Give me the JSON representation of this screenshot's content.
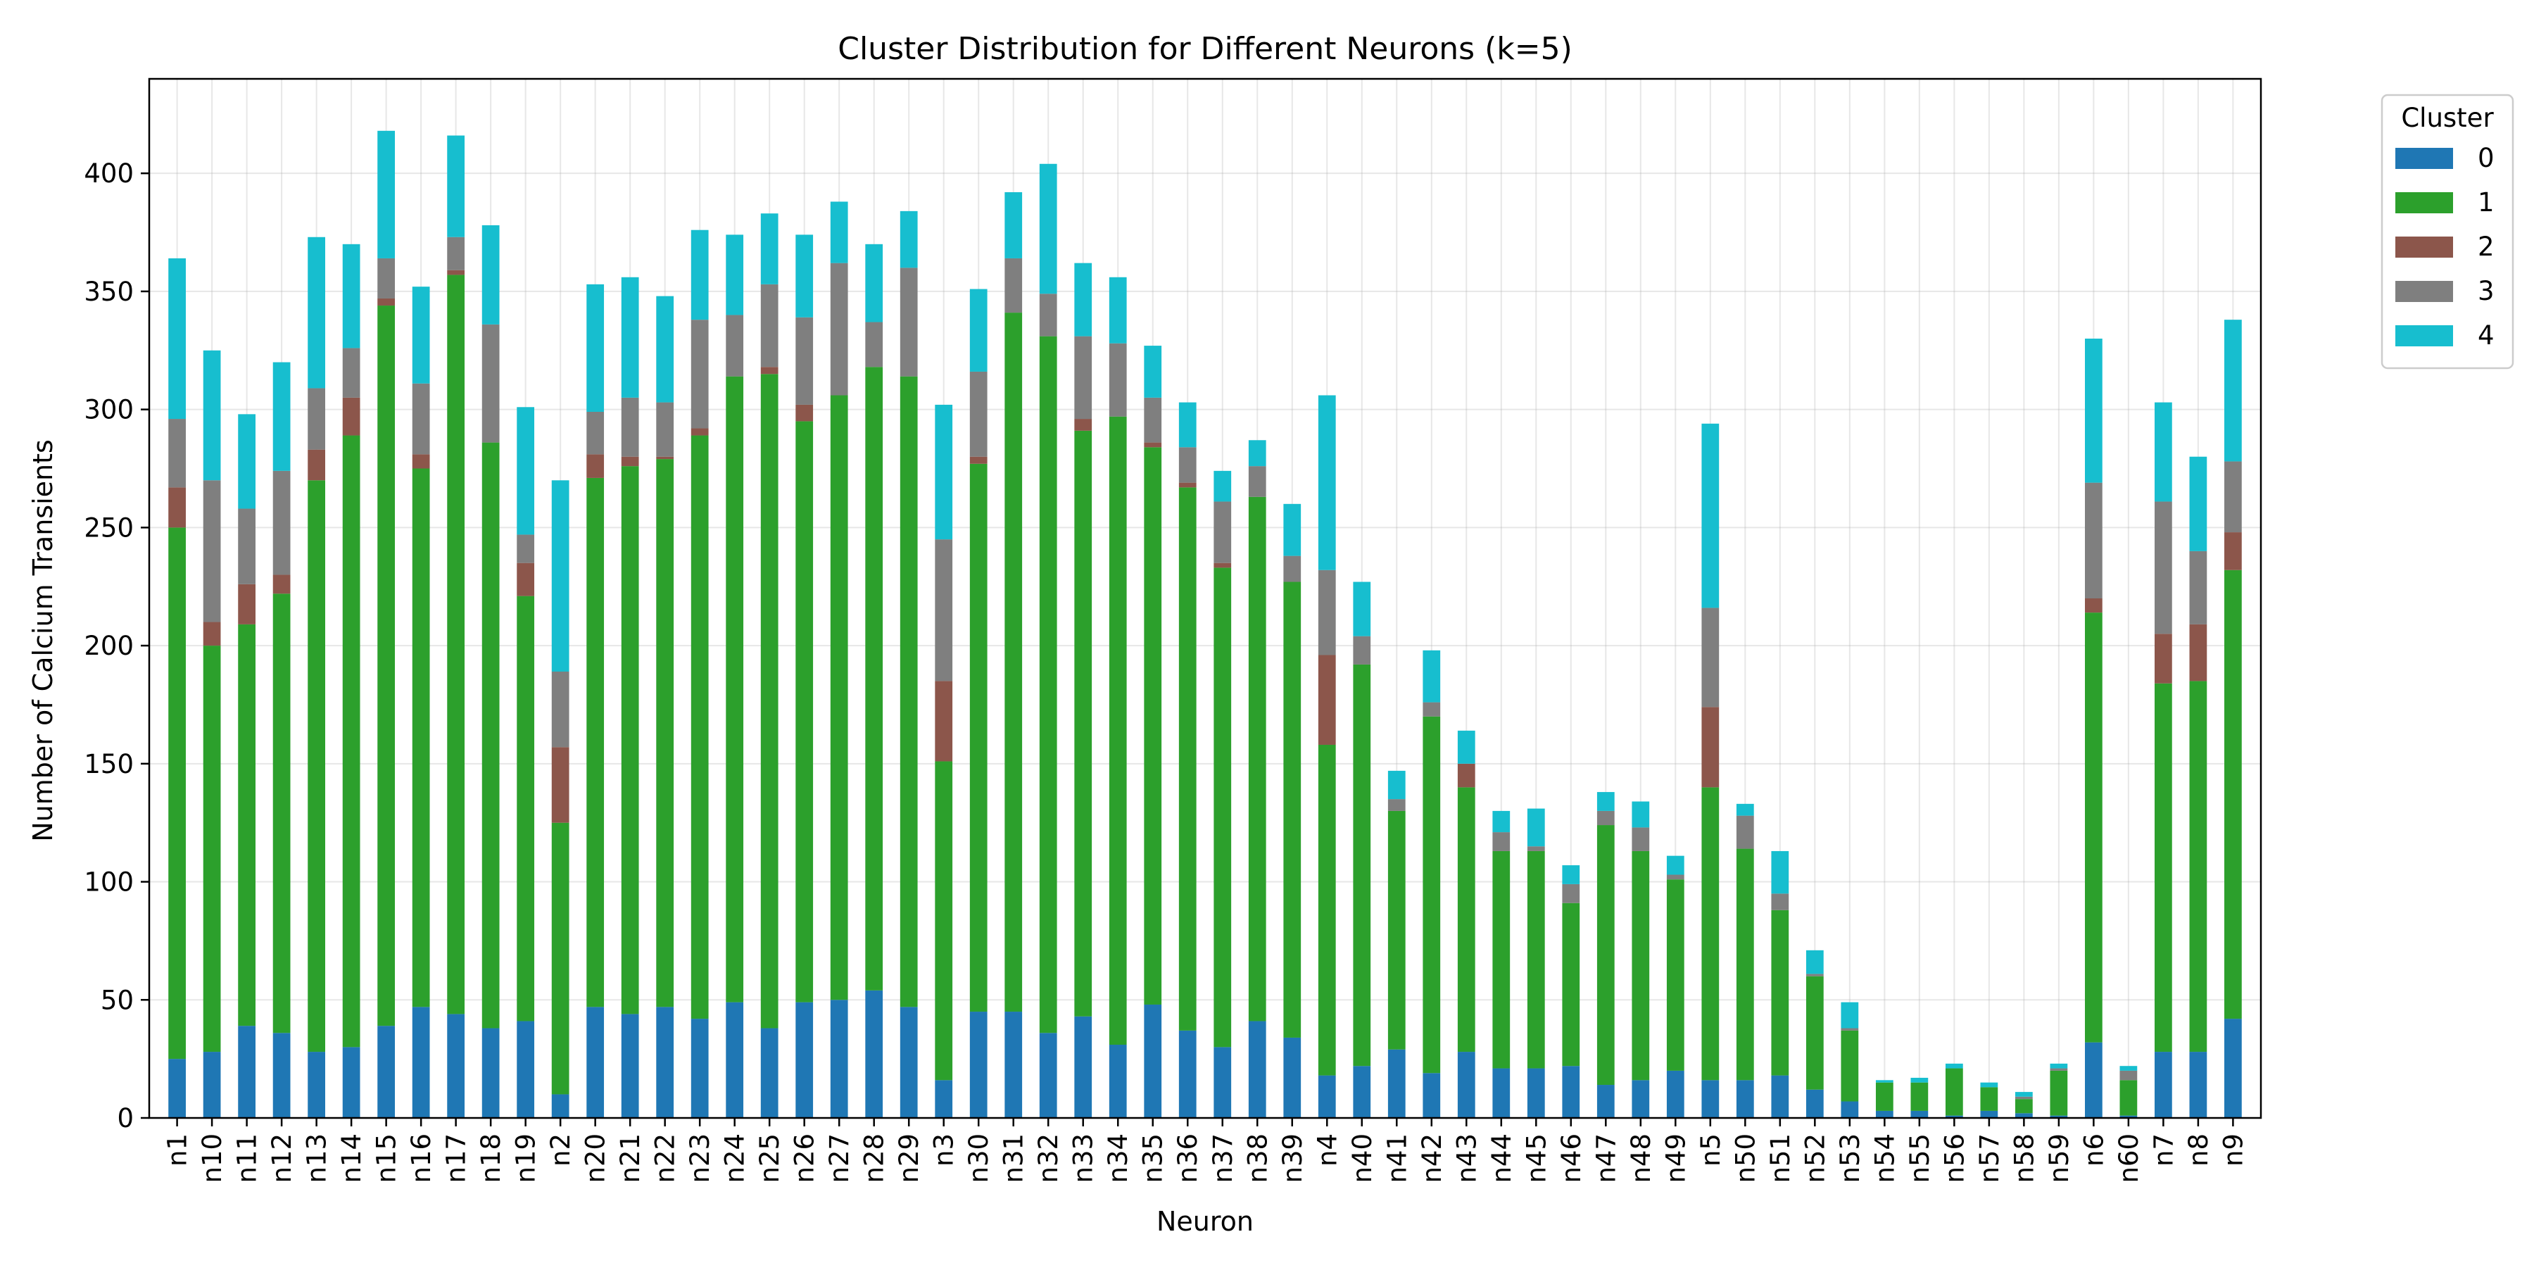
{
  "chart_data": {
    "type": "bar",
    "stacked": true,
    "title": "Cluster Distribution for Different Neurons (k=5)",
    "xlabel": "Neuron",
    "ylabel": "Number of Calcium Transients",
    "ylim": [
      0,
      440
    ],
    "yticks": [
      0,
      50,
      100,
      150,
      200,
      250,
      300,
      350,
      400
    ],
    "grid": true,
    "legend": {
      "title": "Cluster",
      "placement": "outside-top-right"
    },
    "categories": [
      "n1",
      "n10",
      "n11",
      "n12",
      "n13",
      "n14",
      "n15",
      "n16",
      "n17",
      "n18",
      "n19",
      "n2",
      "n20",
      "n21",
      "n22",
      "n23",
      "n24",
      "n25",
      "n26",
      "n27",
      "n28",
      "n29",
      "n3",
      "n30",
      "n31",
      "n32",
      "n33",
      "n34",
      "n35",
      "n36",
      "n37",
      "n38",
      "n39",
      "n4",
      "n40",
      "n41",
      "n42",
      "n43",
      "n44",
      "n45",
      "n46",
      "n47",
      "n48",
      "n49",
      "n5",
      "n50",
      "n51",
      "n52",
      "n53",
      "n54",
      "n55",
      "n56",
      "n57",
      "n58",
      "n59",
      "n6",
      "n60",
      "n7",
      "n8",
      "n9"
    ],
    "series": [
      {
        "name": "0",
        "color": "#1f77b4",
        "values": [
          25,
          28,
          39,
          36,
          28,
          30,
          39,
          47,
          44,
          38,
          41,
          10,
          47,
          44,
          47,
          42,
          49,
          38,
          49,
          50,
          54,
          47,
          16,
          45,
          45,
          36,
          43,
          31,
          48,
          37,
          30,
          41,
          34,
          18,
          22,
          29,
          19,
          28,
          21,
          21,
          22,
          14,
          16,
          20,
          16,
          16,
          18,
          12,
          7,
          3,
          3,
          1,
          3,
          2,
          1,
          32,
          1,
          28,
          28,
          42
        ]
      },
      {
        "name": "1",
        "color": "#2ca02c",
        "values": [
          225,
          172,
          170,
          186,
          242,
          259,
          305,
          228,
          313,
          248,
          180,
          115,
          224,
          232,
          232,
          247,
          265,
          277,
          246,
          256,
          264,
          267,
          135,
          232,
          296,
          295,
          248,
          266,
          236,
          230,
          203,
          222,
          193,
          140,
          170,
          101,
          151,
          112,
          92,
          92,
          69,
          110,
          97,
          81,
          124,
          98,
          70,
          48,
          30,
          12,
          12,
          20,
          10,
          6,
          19,
          182,
          15,
          156,
          157,
          190
        ]
      },
      {
        "name": "2",
        "color": "#8c564b",
        "values": [
          17,
          10,
          17,
          8,
          13,
          16,
          3,
          6,
          2,
          0,
          14,
          32,
          10,
          4,
          1,
          3,
          0,
          3,
          7,
          0,
          0,
          0,
          34,
          3,
          0,
          0,
          5,
          0,
          2,
          2,
          2,
          0,
          0,
          38,
          0,
          0,
          0,
          10,
          0,
          0,
          0,
          0,
          0,
          0,
          34,
          0,
          0,
          0,
          0,
          0,
          0,
          0,
          0,
          0,
          0,
          6,
          0,
          21,
          24,
          16
        ]
      },
      {
        "name": "3",
        "color": "#7f7f7f",
        "values": [
          29,
          60,
          32,
          44,
          26,
          21,
          17,
          30,
          14,
          50,
          12,
          32,
          18,
          25,
          23,
          46,
          26,
          35,
          37,
          56,
          19,
          46,
          60,
          36,
          23,
          18,
          35,
          31,
          19,
          15,
          26,
          13,
          11,
          36,
          12,
          5,
          6,
          0,
          8,
          2,
          8,
          6,
          10,
          2,
          42,
          14,
          7,
          1,
          1,
          0,
          0,
          0,
          0,
          1,
          1,
          49,
          4,
          56,
          31,
          30
        ]
      },
      {
        "name": "4",
        "color": "#17becf",
        "values": [
          68,
          55,
          40,
          46,
          64,
          44,
          54,
          41,
          43,
          42,
          54,
          81,
          54,
          51,
          45,
          38,
          34,
          30,
          35,
          26,
          33,
          24,
          57,
          35,
          28,
          55,
          31,
          28,
          22,
          19,
          13,
          11,
          22,
          74,
          23,
          12,
          22,
          14,
          9,
          16,
          8,
          8,
          11,
          8,
          78,
          5,
          18,
          10,
          11,
          1,
          2,
          2,
          2,
          2,
          2,
          61,
          2,
          42,
          40,
          60
        ]
      }
    ]
  }
}
